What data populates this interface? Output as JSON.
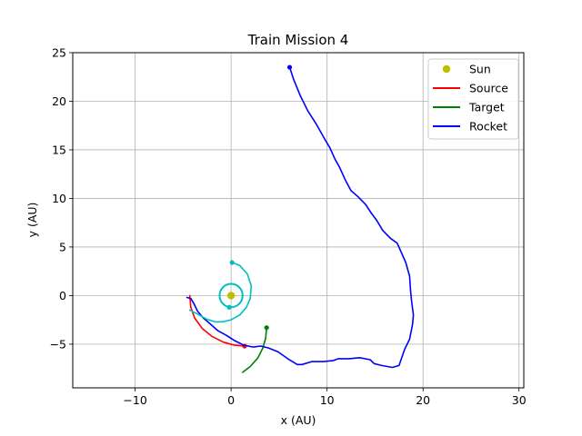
{
  "chart_data": {
    "type": "line",
    "title": "Train Mission 4",
    "xlabel": "x (AU)",
    "ylabel": "y (AU)",
    "xlim": [
      -16.5,
      30.5
    ],
    "ylim": [
      -9.5,
      25
    ],
    "xticks": [
      -10,
      0,
      10,
      20,
      30
    ],
    "xtick_labels": [
      "−10",
      "0",
      "10",
      "20",
      "30"
    ],
    "yticks": [
      -5,
      0,
      5,
      10,
      15,
      20,
      25
    ],
    "ytick_labels": [
      "−5",
      "0",
      "5",
      "10",
      "15",
      "20",
      "25"
    ],
    "grid": true,
    "legend_position": "top-right",
    "colors": {
      "sun": "#bfbf00",
      "source": "#ff0000",
      "target": "#008000",
      "rocket": "#0000ff",
      "orbit": "#00bfbf"
    },
    "series": [
      {
        "name": "Sun",
        "kind": "marker",
        "color": "#bfbf00",
        "points": [
          [
            0,
            0
          ]
        ]
      },
      {
        "name": "Source",
        "kind": "line",
        "color": "#ff0000",
        "points": [
          [
            -4.3,
            0.0
          ],
          [
            -4.2,
            -1.2
          ],
          [
            -3.8,
            -2.3
          ],
          [
            -3.0,
            -3.4
          ],
          [
            -2.0,
            -4.2
          ],
          [
            -0.8,
            -4.8
          ],
          [
            0.3,
            -5.1
          ],
          [
            1.4,
            -5.2
          ]
        ],
        "end_marker": [
          1.4,
          -5.2
        ]
      },
      {
        "name": "Target",
        "kind": "line",
        "color": "#008000",
        "points": [
          [
            1.2,
            -7.9
          ],
          [
            2.0,
            -7.3
          ],
          [
            2.8,
            -6.4
          ],
          [
            3.3,
            -5.4
          ],
          [
            3.6,
            -4.4
          ],
          [
            3.7,
            -3.3
          ]
        ],
        "end_marker": [
          3.7,
          -3.3
        ]
      },
      {
        "name": "Rocket",
        "kind": "line",
        "color": "#0000ff",
        "points": [
          [
            -4.6,
            -0.2
          ],
          [
            -4.2,
            -0.3
          ],
          [
            -3.9,
            -0.8
          ],
          [
            -3.5,
            -1.6
          ],
          [
            -2.9,
            -2.3
          ],
          [
            -2.2,
            -2.9
          ],
          [
            -1.4,
            -3.6
          ],
          [
            -0.5,
            -4.1
          ],
          [
            0.3,
            -4.6
          ],
          [
            1.3,
            -5.1
          ],
          [
            2.3,
            -5.3
          ],
          [
            3.1,
            -5.2
          ],
          [
            3.9,
            -5.4
          ],
          [
            4.9,
            -5.8
          ],
          [
            5.9,
            -6.5
          ],
          [
            6.9,
            -7.1
          ],
          [
            7.4,
            -7.1
          ],
          [
            8.4,
            -6.8
          ],
          [
            9.6,
            -6.8
          ],
          [
            10.6,
            -6.7
          ],
          [
            11.2,
            -6.5
          ],
          [
            12.3,
            -6.5
          ],
          [
            13.4,
            -6.4
          ],
          [
            14.5,
            -6.6
          ],
          [
            14.9,
            -7.0
          ],
          [
            15.7,
            -7.2
          ],
          [
            16.8,
            -7.4
          ],
          [
            17.5,
            -7.2
          ],
          [
            18.1,
            -5.5
          ],
          [
            18.6,
            -4.5
          ],
          [
            18.9,
            -3.0
          ],
          [
            19.0,
            -2.0
          ],
          [
            18.8,
            -0.5
          ],
          [
            18.7,
            0.5
          ],
          [
            18.6,
            2.0
          ],
          [
            18.2,
            3.4
          ],
          [
            17.8,
            4.3
          ],
          [
            17.3,
            5.4
          ],
          [
            16.6,
            5.9
          ],
          [
            15.8,
            6.7
          ],
          [
            15.2,
            7.7
          ],
          [
            14.6,
            8.5
          ],
          [
            14.0,
            9.4
          ],
          [
            13.2,
            10.2
          ],
          [
            12.5,
            10.8
          ],
          [
            11.9,
            11.9
          ],
          [
            11.3,
            13.2
          ],
          [
            10.8,
            14.1
          ],
          [
            10.3,
            15.2
          ],
          [
            9.7,
            16.2
          ],
          [
            8.9,
            17.6
          ],
          [
            8.0,
            19.0
          ],
          [
            7.2,
            20.6
          ],
          [
            6.5,
            22.3
          ],
          [
            6.1,
            23.5
          ]
        ],
        "end_marker": [
          6.1,
          23.5
        ]
      },
      {
        "kind": "line",
        "color": "#00bfbf",
        "points": [
          [
            0.1,
            3.4
          ],
          [
            0.9,
            3.1
          ],
          [
            1.7,
            2.2
          ],
          [
            2.1,
            1.0
          ],
          [
            2.0,
            -0.3
          ],
          [
            1.6,
            -1.2
          ],
          [
            0.9,
            -2.0
          ],
          [
            0.0,
            -2.5
          ],
          [
            -0.9,
            -2.7
          ],
          [
            -1.7,
            -2.7
          ],
          [
            -2.6,
            -2.4
          ],
          [
            -3.5,
            -1.9
          ],
          [
            -4.3,
            -1.5
          ]
        ],
        "start_marker": [
          0.1,
          3.4
        ]
      },
      {
        "kind": "circle",
        "color": "#00bfbf",
        "center": [
          0,
          0
        ],
        "radius": 1.2,
        "start_marker": [
          -0.2,
          -1.2
        ]
      }
    ]
  },
  "legend": {
    "items": [
      {
        "label": "Sun",
        "kind": "marker",
        "color": "#bfbf00"
      },
      {
        "label": "Source",
        "kind": "line",
        "color": "#ff0000"
      },
      {
        "label": "Target",
        "kind": "line",
        "color": "#008000"
      },
      {
        "label": "Rocket",
        "kind": "line",
        "color": "#0000ff"
      }
    ]
  }
}
